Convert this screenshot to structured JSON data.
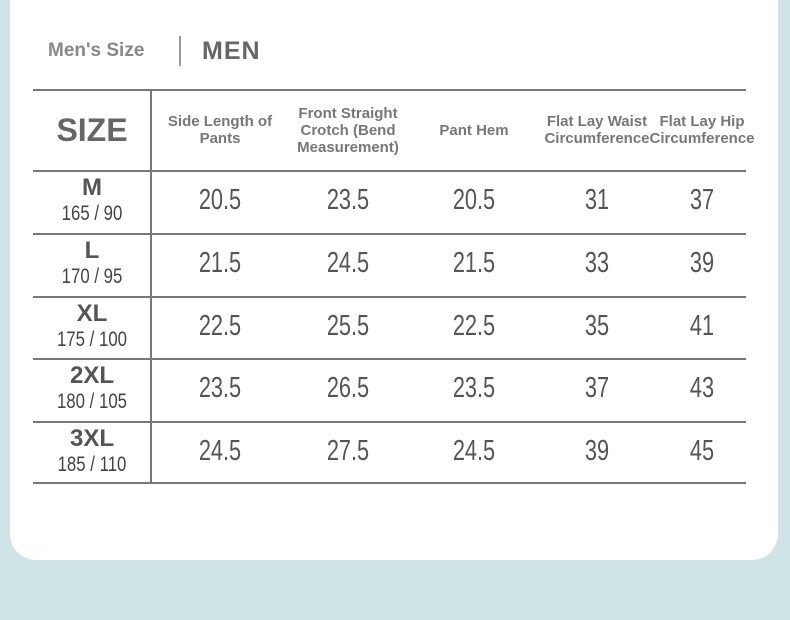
{
  "header": {
    "label": "Men's Size",
    "title": "MEN"
  },
  "table": {
    "columns": [
      "SIZE",
      "Side Length of Pants",
      "Front Straight Crotch (Bend Measurement)",
      "Pant Hem",
      "Flat Lay Waist Circumference",
      "Flat Lay Hip Circumference"
    ],
    "rows": [
      {
        "size": "M",
        "body": "165 / 90",
        "values": [
          20.5,
          23.5,
          20.5,
          31,
          37
        ]
      },
      {
        "size": "L",
        "body": "170 / 95",
        "values": [
          21.5,
          24.5,
          21.5,
          33,
          39
        ]
      },
      {
        "size": "XL",
        "body": "175 / 100",
        "values": [
          22.5,
          25.5,
          22.5,
          35,
          41
        ]
      },
      {
        "size": "2XL",
        "body": "180 / 105",
        "values": [
          23.5,
          26.5,
          23.5,
          37,
          43
        ]
      },
      {
        "size": "3XL",
        "body": "185 / 110",
        "values": [
          24.5,
          27.5,
          24.5,
          39,
          45
        ]
      }
    ]
  }
}
